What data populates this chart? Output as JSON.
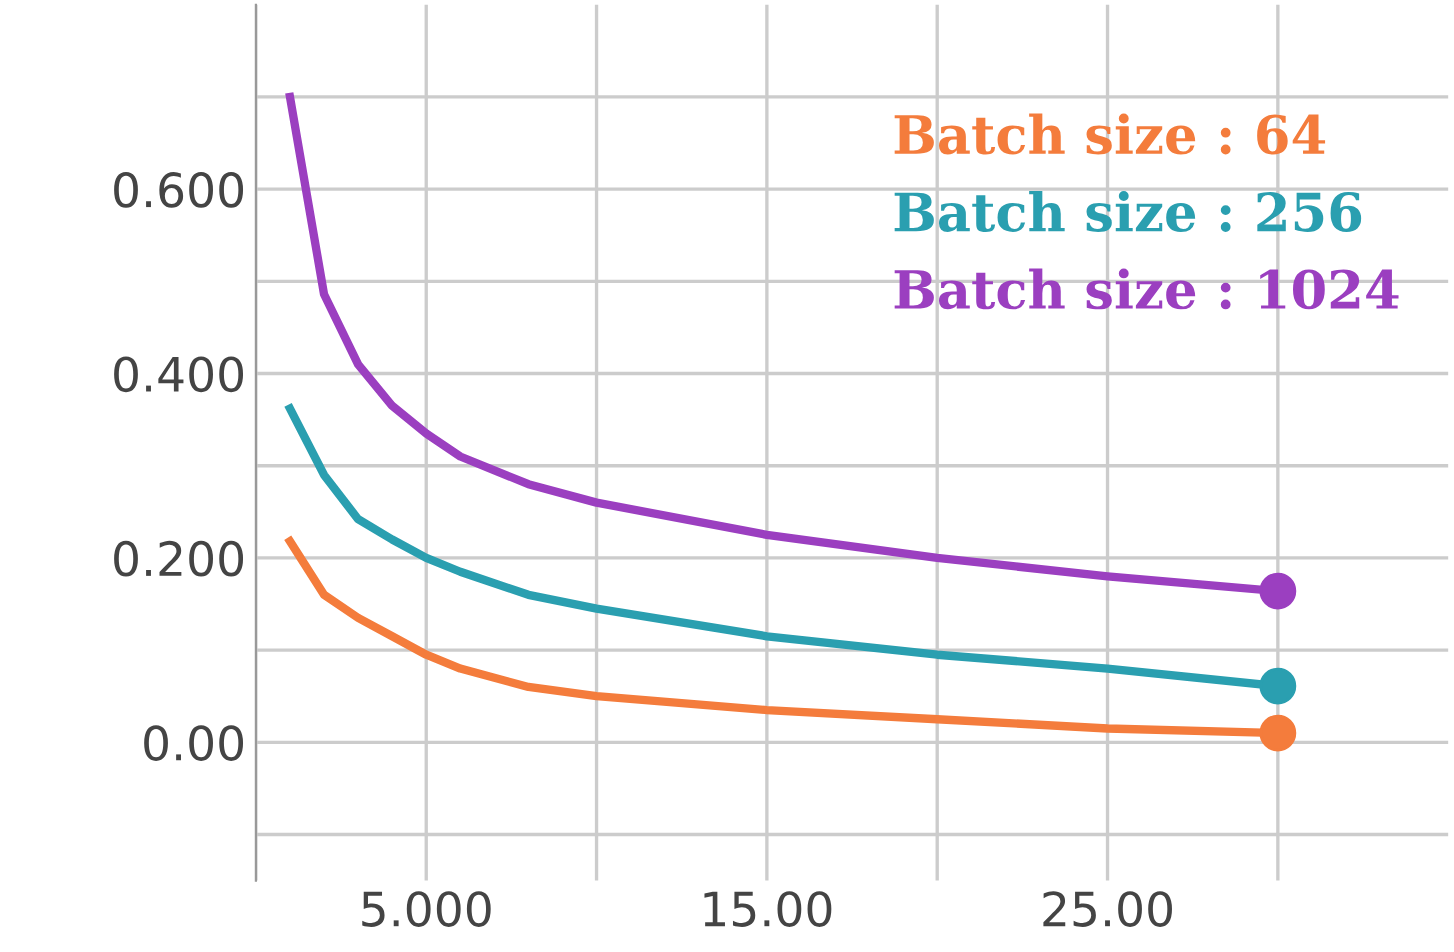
{
  "chart_data": {
    "type": "line",
    "x": [
      1,
      2,
      3,
      4,
      5,
      6,
      8,
      10,
      15,
      20,
      25,
      30
    ],
    "series": [
      {
        "name": "Batch size : 64",
        "color": "#f47c3c",
        "values": [
          0.218,
          0.16,
          0.135,
          0.115,
          0.095,
          0.08,
          0.06,
          0.05,
          0.035,
          0.025,
          0.015,
          0.01
        ]
      },
      {
        "name": "Batch size : 256",
        "color": "#2a9fb0",
        "values": [
          0.362,
          0.29,
          0.242,
          0.22,
          0.2,
          0.185,
          0.16,
          0.145,
          0.115,
          0.095,
          0.08,
          0.061
        ]
      },
      {
        "name": "Batch size : 1024",
        "color": "#9b3fc0",
        "values": [
          0.7,
          0.486,
          0.41,
          0.365,
          0.335,
          0.31,
          0.28,
          0.26,
          0.225,
          0.2,
          0.18,
          0.164
        ]
      },
      {
        "type": "scatter",
        "marker": "circle",
        "color": "#f47c3c",
        "values": [
          null,
          null,
          null,
          null,
          null,
          null,
          null,
          null,
          null,
          null,
          null,
          0.01
        ]
      },
      {
        "type": "scatter",
        "marker": "circle",
        "color": "#2a9fb0",
        "values": [
          null,
          null,
          null,
          null,
          null,
          null,
          null,
          null,
          null,
          null,
          null,
          0.061
        ]
      },
      {
        "type": "scatter",
        "marker": "circle",
        "color": "#9b3fc0",
        "values": [
          null,
          null,
          null,
          null,
          null,
          null,
          null,
          null,
          null,
          null,
          null,
          0.164
        ]
      }
    ],
    "xlim": [
      0,
      35
    ],
    "xticks": [
      {
        "value": 5,
        "label": "5.000"
      },
      {
        "value": 10,
        "label": null
      },
      {
        "value": 15,
        "label": "15.00"
      },
      {
        "value": 20,
        "label": null
      },
      {
        "value": 25,
        "label": "25.00"
      },
      {
        "value": 30,
        "label": null
      }
    ],
    "ylim": [
      -0.15,
      0.8
    ],
    "yticks": [
      {
        "value": 0,
        "label": "0.00"
      },
      {
        "value": 0.2,
        "label": "0.200"
      },
      {
        "value": 0.4,
        "label": "0.400"
      },
      {
        "value": 0.6,
        "label": "0.600"
      }
    ],
    "grid": true,
    "legend": "top right",
    "line_style": "solid"
  }
}
